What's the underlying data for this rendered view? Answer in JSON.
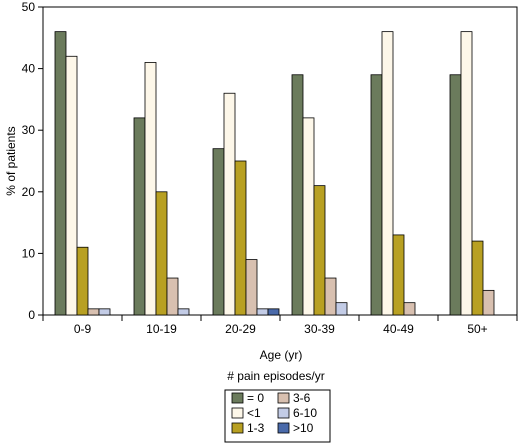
{
  "chart_data": {
    "type": "bar",
    "xlabel": "Age (yr)",
    "ylabel": "% of patients",
    "ylim": [
      0,
      50
    ],
    "yticks": [
      0,
      10,
      20,
      30,
      40,
      50
    ],
    "grid": false,
    "legend_title": "# pain episodes/yr",
    "legend_position": "bottom-center",
    "categories": [
      "0-9",
      "10-19",
      "20-29",
      "30-39",
      "40-49",
      "50+"
    ],
    "series": [
      {
        "name": "= 0",
        "color": "#6b7b5c",
        "values": [
          46,
          32,
          27,
          39,
          39,
          39
        ]
      },
      {
        "name": "<1",
        "color": "#fdf7e9",
        "values": [
          42,
          41,
          36,
          32,
          46,
          46
        ]
      },
      {
        "name": "1-3",
        "color": "#b8a022",
        "values": [
          11,
          20,
          25,
          21,
          13,
          12
        ]
      },
      {
        "name": "3-6",
        "color": "#d8c0b0",
        "values": [
          1,
          6,
          9,
          6,
          2,
          4
        ]
      },
      {
        "name": "6-10",
        "color": "#c3cce6",
        "values": [
          1,
          1,
          1,
          2,
          0,
          0
        ]
      },
      {
        "name": ">10",
        "color": "#4a6aaa",
        "values": [
          0,
          0,
          1,
          0,
          0,
          0
        ]
      }
    ]
  }
}
